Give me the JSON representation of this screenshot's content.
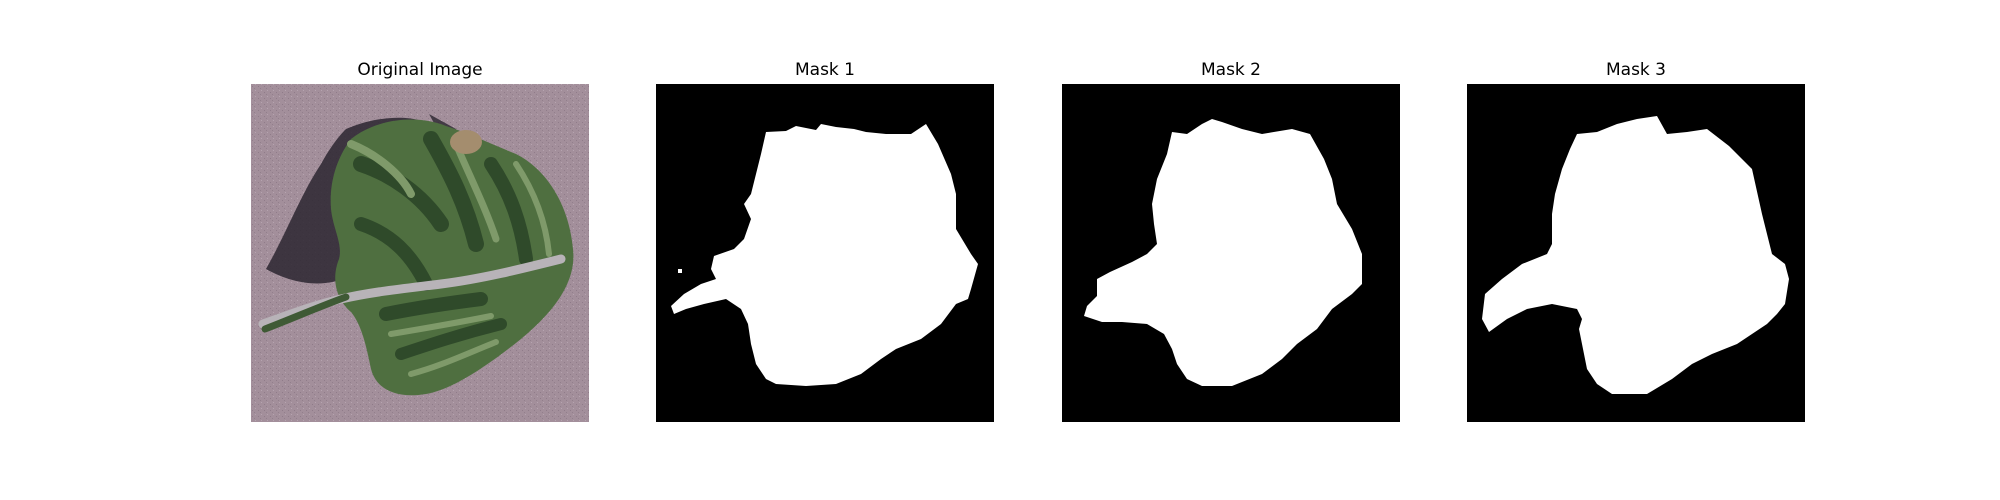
{
  "figure": {
    "panels": [
      {
        "title": "Original Image"
      },
      {
        "title": "Mask 1"
      },
      {
        "title": "Mask 2"
      },
      {
        "title": "Mask 3"
      }
    ],
    "colors": {
      "background": "#ffffff",
      "mask_background": "#000000",
      "mask_foreground": "#ffffff",
      "photo_background": "#a38f9b",
      "leaf_dark": "#2f4a2a",
      "leaf_mid": "#4f6f40",
      "leaf_light": "#7f9a6a",
      "midrib": "#b8b3b8",
      "shadow": "#2b2630"
    }
  }
}
